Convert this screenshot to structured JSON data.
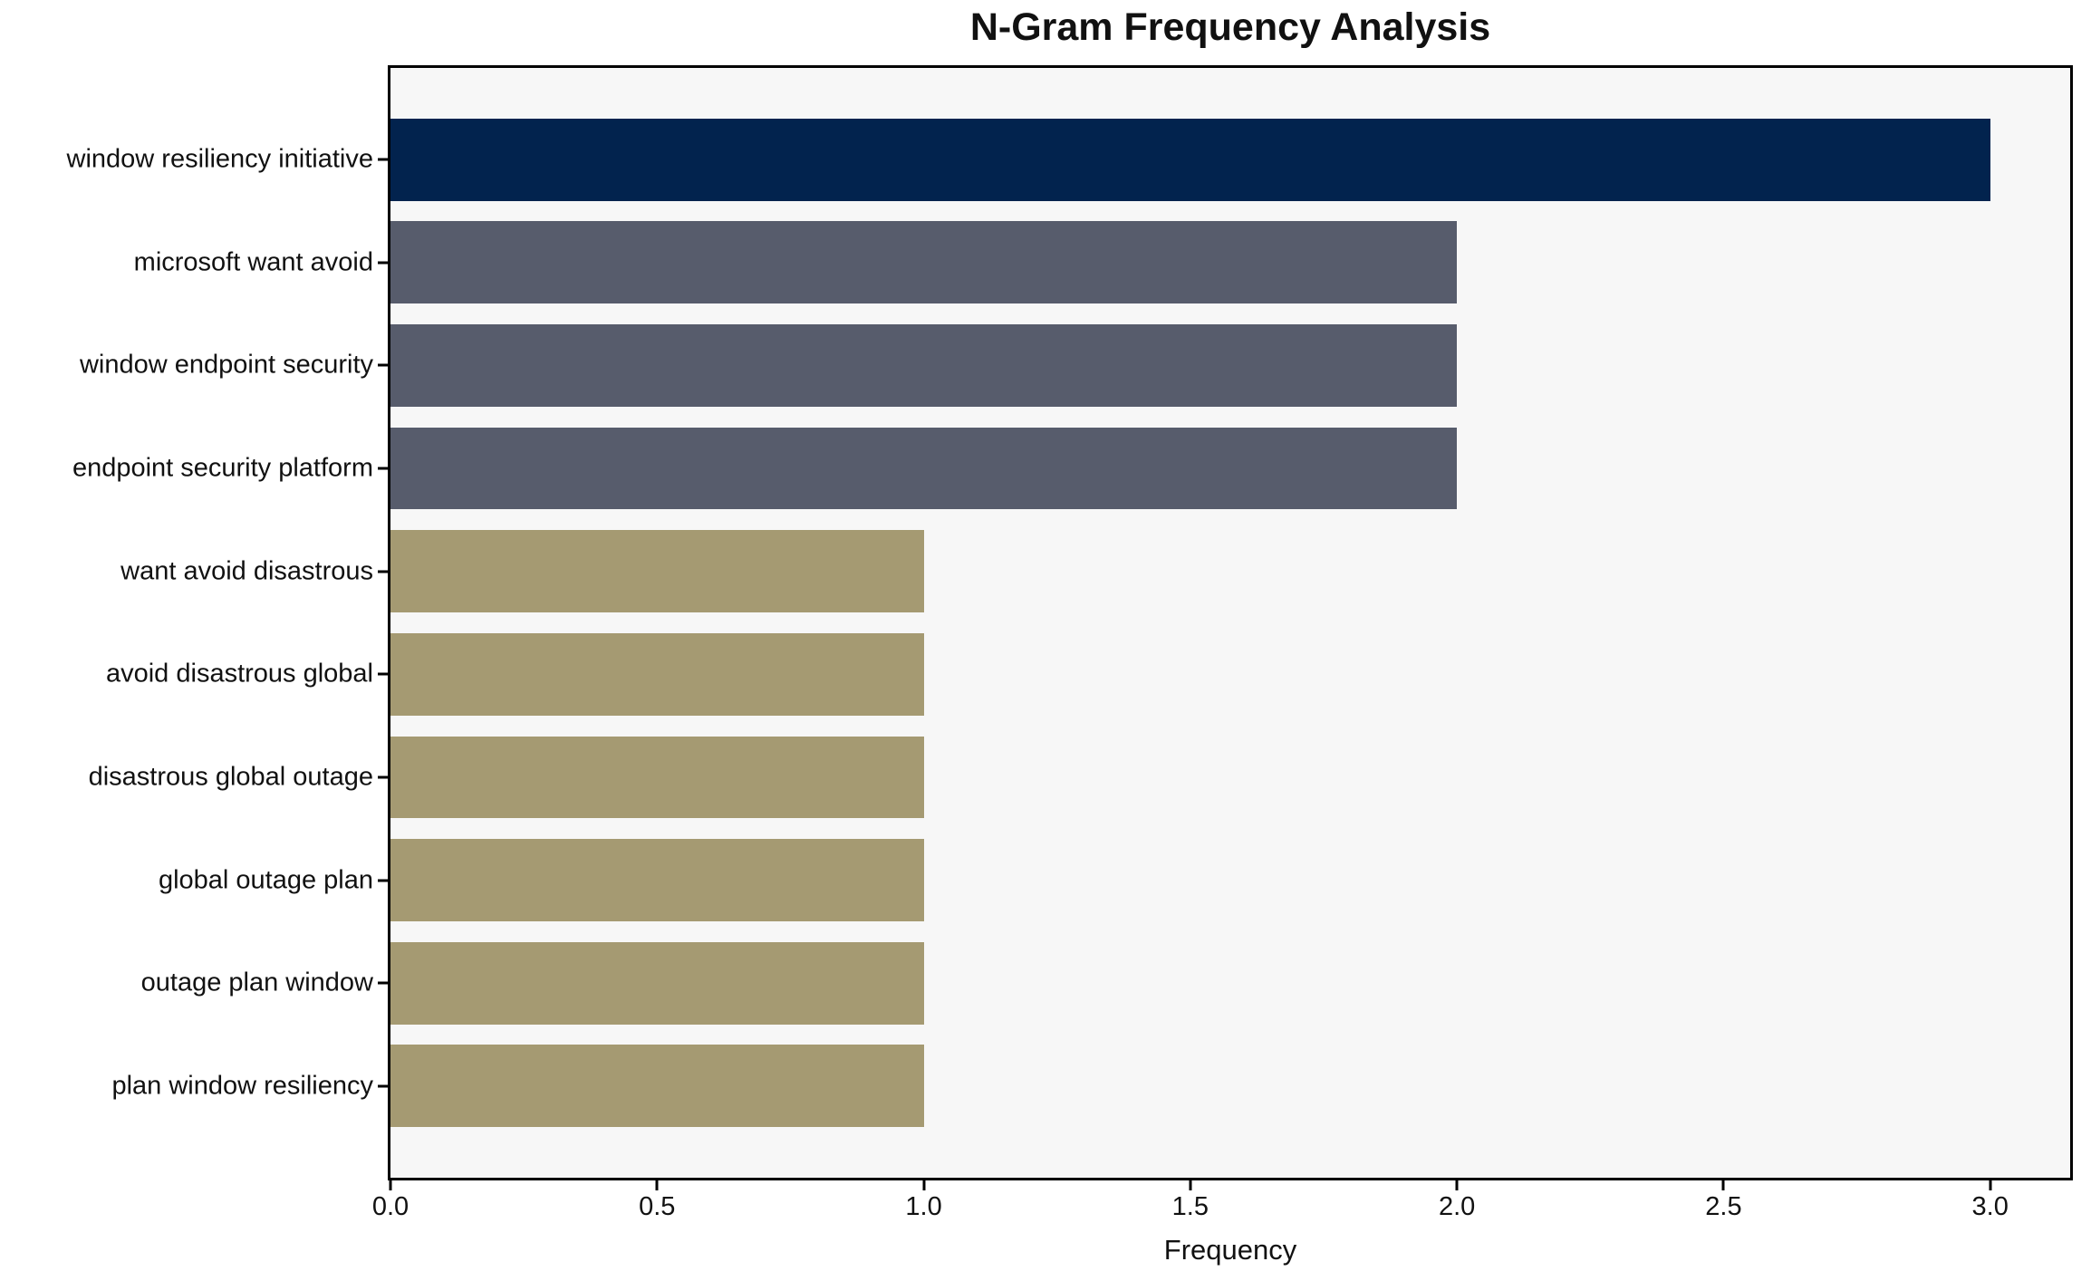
{
  "chart_data": {
    "type": "bar",
    "orientation": "horizontal",
    "title": "N-Gram Frequency Analysis",
    "xlabel": "Frequency",
    "ylabel": "",
    "categories": [
      "window resiliency initiative",
      "microsoft want avoid",
      "window endpoint security",
      "endpoint security platform",
      "want avoid disastrous",
      "avoid disastrous global",
      "disastrous global outage",
      "global outage plan",
      "outage plan window",
      "plan window resiliency"
    ],
    "values": [
      3,
      2,
      2,
      2,
      1,
      1,
      1,
      1,
      1,
      1
    ],
    "bar_colors": [
      "#02234E",
      "#575C6C",
      "#575C6C",
      "#575C6C",
      "#A59A72",
      "#A59A72",
      "#A59A72",
      "#A59A72",
      "#A59A72",
      "#A59A72"
    ],
    "x_ticks": [
      0.0,
      0.5,
      1.0,
      1.5,
      2.0,
      2.5,
      3.0
    ],
    "x_tick_labels": [
      "0.0",
      "0.5",
      "1.0",
      "1.5",
      "2.0",
      "2.5",
      "3.0"
    ],
    "xlim": [
      0,
      3.15
    ],
    "grid": false,
    "legend": null,
    "bar_height_fraction": 0.8,
    "plot_background": "#F7F7F7",
    "figure_background": "#FFFFFF",
    "spine_color": "#000000"
  }
}
